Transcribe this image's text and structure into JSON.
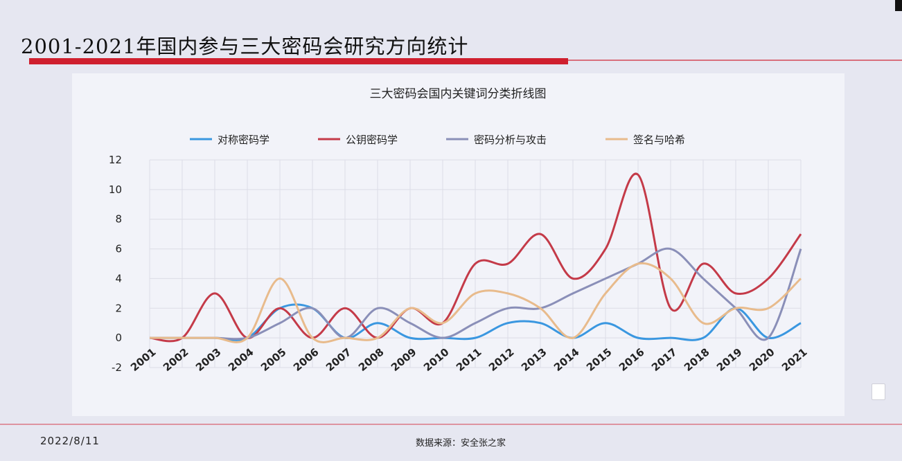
{
  "slide": {
    "title": "2001-2021年国内参与三大密码会研究方向统计",
    "date": "2022/8/11",
    "source": "数据来源：安全张之家"
  },
  "chart_data": {
    "type": "line",
    "title": "三大密码会国内关键词分类折线图",
    "categories": [
      "2001",
      "2002",
      "2003",
      "2004",
      "2005",
      "2006",
      "2007",
      "2008",
      "2009",
      "2010",
      "2011",
      "2012",
      "2013",
      "2014",
      "2015",
      "2016",
      "2017",
      "2018",
      "2019",
      "2020",
      "2021"
    ],
    "series": [
      {
        "name": "对称密码学",
        "color": "#3a97e0",
        "values": [
          0,
          0,
          0,
          0,
          2,
          2,
          0,
          1,
          0,
          0,
          0,
          1,
          1,
          0,
          1,
          0,
          0,
          0,
          2,
          0,
          1
        ]
      },
      {
        "name": "公钥密码学",
        "color": "#c43a48",
        "values": [
          0,
          0,
          3,
          0,
          2,
          0,
          2,
          0,
          2,
          1,
          5,
          5,
          7,
          4,
          6,
          11,
          2,
          5,
          3,
          4,
          7
        ]
      },
      {
        "name": "密码分析与攻击",
        "color": "#8a8fb8",
        "values": [
          0,
          0,
          0,
          0,
          1,
          2,
          0,
          2,
          1,
          0,
          1,
          2,
          2,
          3,
          4,
          5,
          6,
          4,
          2,
          0,
          6
        ]
      },
      {
        "name": "签名与哈希",
        "color": "#e8bb8c",
        "values": [
          0,
          0,
          0,
          0,
          4,
          0,
          0,
          0,
          2,
          1,
          3,
          3,
          2,
          0,
          3,
          5,
          4,
          1,
          2,
          2,
          4
        ]
      }
    ],
    "ylim": [
      -2,
      12
    ],
    "yticks": [
      -2,
      0,
      2,
      4,
      6,
      8,
      10,
      12
    ],
    "grid": true,
    "legend": "top"
  }
}
